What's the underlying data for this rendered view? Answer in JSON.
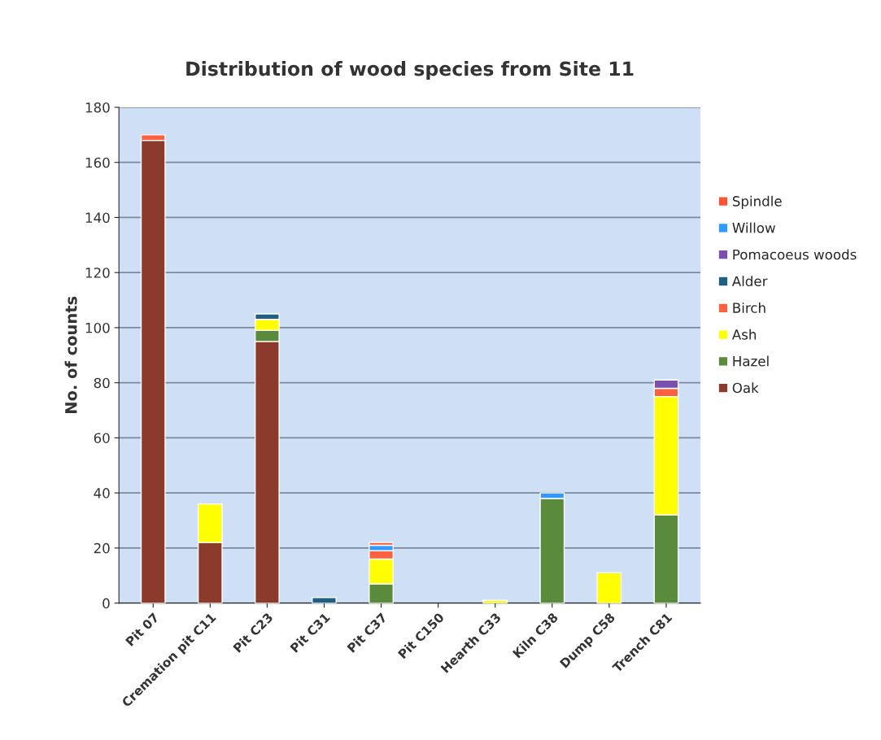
{
  "chart_data": {
    "type": "bar",
    "title": "Distribution of wood species from Site 11",
    "ylabel": "No. of counts",
    "categories": [
      "Pit 07",
      "Cremation pit C11",
      "Pit C23",
      "Pit C31",
      "Pit C37",
      "Pit C150",
      "Hearth C33",
      "Kiln C38",
      "Dump C58",
      "Trench C81"
    ],
    "stacked": true,
    "series": [
      {
        "name": "Oak",
        "color": "#8b3a2b",
        "values": [
          168,
          22,
          95,
          null,
          null,
          null,
          null,
          null,
          null,
          null
        ]
      },
      {
        "name": "Hazel",
        "color": "#5a8a3c",
        "values": [
          null,
          null,
          4,
          null,
          7,
          null,
          null,
          38,
          null,
          32
        ]
      },
      {
        "name": "Ash",
        "color": "#ffff00",
        "values": [
          null,
          14,
          4,
          null,
          9,
          null,
          1,
          null,
          11,
          43
        ]
      },
      {
        "name": "Birch",
        "color": "#ff6040",
        "values": [
          2,
          null,
          null,
          null,
          3,
          null,
          null,
          null,
          null,
          3
        ]
      },
      {
        "name": "Alder",
        "color": "#1f5f7f",
        "values": [
          null,
          null,
          2,
          2,
          null,
          null,
          null,
          null,
          null,
          null
        ]
      },
      {
        "name": "Pomacoeus woods",
        "color": "#7b4fb0",
        "values": [
          null,
          null,
          null,
          null,
          null,
          null,
          null,
          null,
          null,
          3
        ]
      },
      {
        "name": "Willow",
        "color": "#3399ff",
        "values": [
          null,
          null,
          null,
          null,
          2,
          null,
          null,
          2,
          null,
          null
        ]
      },
      {
        "name": "Spindle",
        "color": "#ff5533",
        "values": [
          null,
          null,
          null,
          null,
          1,
          null,
          null,
          null,
          null,
          null
        ]
      }
    ],
    "ylim": [
      0,
      180
    ],
    "yticks": [
      0,
      20,
      40,
      60,
      80,
      100,
      120,
      140,
      160,
      180
    ],
    "grid": "y",
    "legend": "right"
  }
}
